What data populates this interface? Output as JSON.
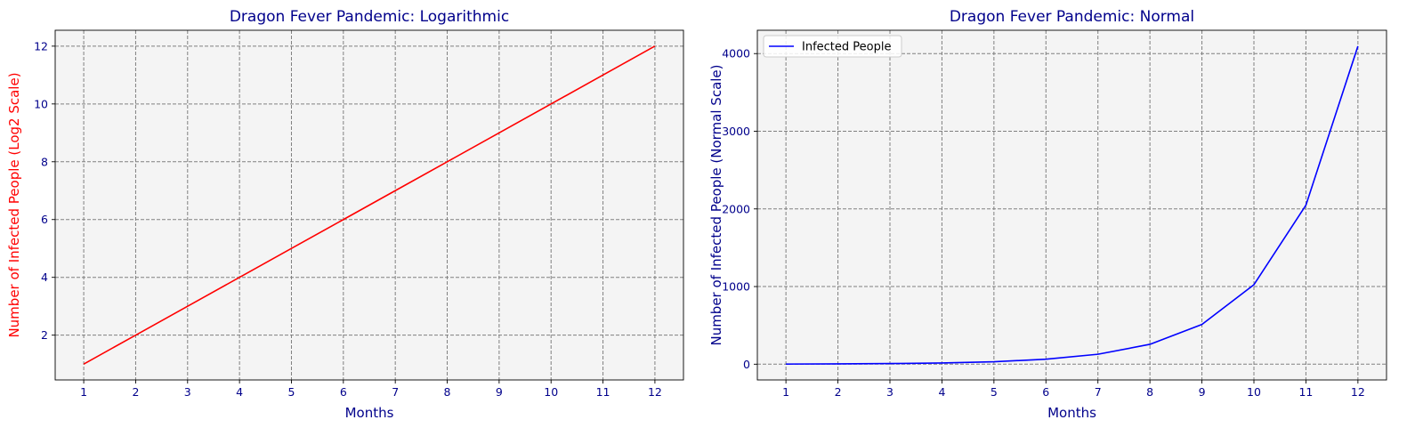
{
  "chart_data": [
    {
      "type": "line",
      "title": "Dragon Fever Pandemic: Logarithmic",
      "xlabel": "Months",
      "ylabel": "Number of Infected People (Log2 Scale)",
      "x": [
        1,
        2,
        3,
        4,
        5,
        6,
        7,
        8,
        9,
        10,
        11,
        12
      ],
      "series": [
        {
          "values": [
            1,
            2,
            3,
            4,
            5,
            6,
            7,
            8,
            9,
            10,
            11,
            12
          ],
          "color": "#ff0000"
        }
      ],
      "xticks": [
        1,
        2,
        3,
        4,
        5,
        6,
        7,
        8,
        9,
        10,
        11,
        12
      ],
      "yticks": [
        2,
        4,
        6,
        8,
        10,
        12
      ],
      "xlim": [
        0.45,
        12.55
      ],
      "ylim": [
        0.45,
        12.55
      ],
      "grid": true,
      "legend": null,
      "colors": {
        "title": "#00008b",
        "xlabel": "#00008b",
        "ylabel": "#ff0000",
        "ticks": "#00008b",
        "background": "#f4f4f4",
        "grid": "#808080"
      }
    },
    {
      "type": "line",
      "title": "Dragon Fever Pandemic: Normal",
      "xlabel": "Months",
      "ylabel": "Number of Infected People (Normal Scale)",
      "x": [
        1,
        2,
        3,
        4,
        5,
        6,
        7,
        8,
        9,
        10,
        11,
        12
      ],
      "series": [
        {
          "name": "Infected People",
          "values": [
            2,
            4,
            8,
            16,
            32,
            64,
            128,
            256,
            512,
            1024,
            2048,
            4096
          ],
          "color": "#0000ff"
        }
      ],
      "xticks": [
        1,
        2,
        3,
        4,
        5,
        6,
        7,
        8,
        9,
        10,
        11,
        12
      ],
      "yticks": [
        0,
        1000,
        2000,
        3000,
        4000
      ],
      "xlim": [
        0.45,
        12.55
      ],
      "ylim": [
        -202.7,
        4300.7
      ],
      "grid": true,
      "legend": "top-left",
      "colors": {
        "title": "#00008b",
        "xlabel": "#00008b",
        "ylabel": "#00008b",
        "ticks": "#00008b",
        "background": "#f4f4f4",
        "grid": "#808080"
      }
    }
  ]
}
